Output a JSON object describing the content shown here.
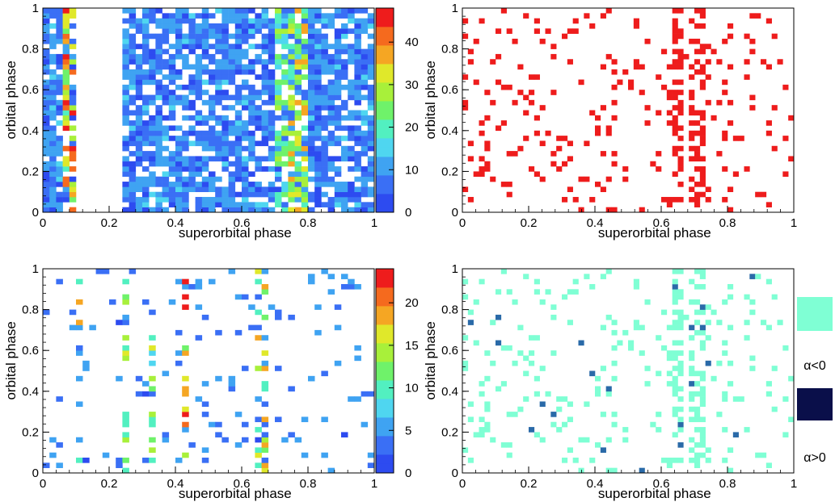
{
  "chart_data": [
    {
      "type": "heatmap",
      "panel": "top-left",
      "xlabel": "superorbital phase",
      "ylabel": "orbital phase",
      "xlim": [
        0,
        1
      ],
      "ylim": [
        0,
        1
      ],
      "xticks": [
        "0",
        "0.2",
        "0.4",
        "0.6",
        "0.8",
        "1"
      ],
      "yticks": [
        "0",
        "0.2",
        "0.4",
        "0.6",
        "0.8",
        "1"
      ],
      "colorbar": {
        "min": 0,
        "max": 48,
        "ticks": [
          "0",
          "10",
          "20",
          "30",
          "40"
        ],
        "tick_values": [
          0,
          10,
          20,
          30,
          40
        ]
      },
      "grid": {
        "nx": 50,
        "ny": 40
      },
      "empty_x_ranges": [
        [
          0.1,
          0.24
        ]
      ],
      "dense": true,
      "seed": 11,
      "fill_fraction": 0.78,
      "hot_columns": [
        {
          "x": 0.08,
          "value": 35
        },
        {
          "x": 0.76,
          "value": 30
        },
        {
          "x": 0.78,
          "value": 30
        },
        {
          "x": 0.72,
          "value": 22
        }
      ]
    },
    {
      "type": "heatmap",
      "panel": "top-right",
      "xlabel": "superorbital phase",
      "ylabel": "orbital phase",
      "xlim": [
        0,
        1
      ],
      "ylim": [
        0,
        1
      ],
      "xticks": [
        "0",
        "0.2",
        "0.4",
        "0.6",
        "0.8",
        "1"
      ],
      "yticks": [
        "0",
        "0.2",
        "0.4",
        "0.6",
        "0.8",
        "1"
      ],
      "color": "#ee1c1c",
      "grid": {
        "nx": 60,
        "ny": 40
      },
      "seed": 23,
      "fill_fraction": 0.09,
      "dense_columns": [
        0.65,
        0.66,
        0.7,
        0.72
      ]
    },
    {
      "type": "heatmap",
      "panel": "bottom-left",
      "xlabel": "superorbital phase",
      "ylabel": "orbital phase",
      "xlim": [
        0,
        1
      ],
      "ylim": [
        0,
        1
      ],
      "xticks": [
        "0",
        "0.2",
        "0.4",
        "0.6",
        "0.8",
        "1"
      ],
      "yticks": [
        "0",
        "0.2",
        "0.4",
        "0.6",
        "0.8",
        "1"
      ],
      "colorbar": {
        "min": 0,
        "max": 24,
        "ticks": [
          "0",
          "5",
          "10",
          "15",
          "20"
        ],
        "tick_values": [
          0,
          5,
          10,
          15,
          20
        ]
      },
      "grid": {
        "nx": 50,
        "ny": 40
      },
      "seed": 37,
      "fill_fraction": 0.07,
      "hot_columns": [
        {
          "x": 0.11,
          "value": 15
        },
        {
          "x": 0.25,
          "value": 14
        },
        {
          "x": 0.33,
          "value": 12
        },
        {
          "x": 0.43,
          "value": 20
        },
        {
          "x": 0.66,
          "value": 14
        }
      ]
    },
    {
      "type": "heatmap",
      "panel": "bottom-right",
      "xlabel": "superorbital phase",
      "ylabel": "orbital phase",
      "xlim": [
        0,
        1
      ],
      "ylim": [
        0,
        1
      ],
      "xticks": [
        "0",
        "0.2",
        "0.4",
        "0.6",
        "0.8",
        "1"
      ],
      "yticks": [
        "0",
        "0.2",
        "0.4",
        "0.6",
        "0.8",
        "1"
      ],
      "grid": {
        "nx": 60,
        "ny": 40
      },
      "seed": 23,
      "fill_fraction": 0.09,
      "dense_columns": [
        0.65,
        0.66,
        0.7,
        0.72
      ],
      "dark_fraction": 0.08,
      "legend": [
        {
          "label": "α<0",
          "color": "#7fffd4"
        },
        {
          "label": "α>0",
          "color": "#0a0f4a"
        }
      ]
    }
  ],
  "palette": [
    "#2d4bf0",
    "#3a6ff5",
    "#3fa3f2",
    "#4fd6f0",
    "#52f0c0",
    "#6ff26a",
    "#a8f03a",
    "#e0e82a",
    "#f5a623",
    "#f56a1e",
    "#ee1c1c"
  ]
}
